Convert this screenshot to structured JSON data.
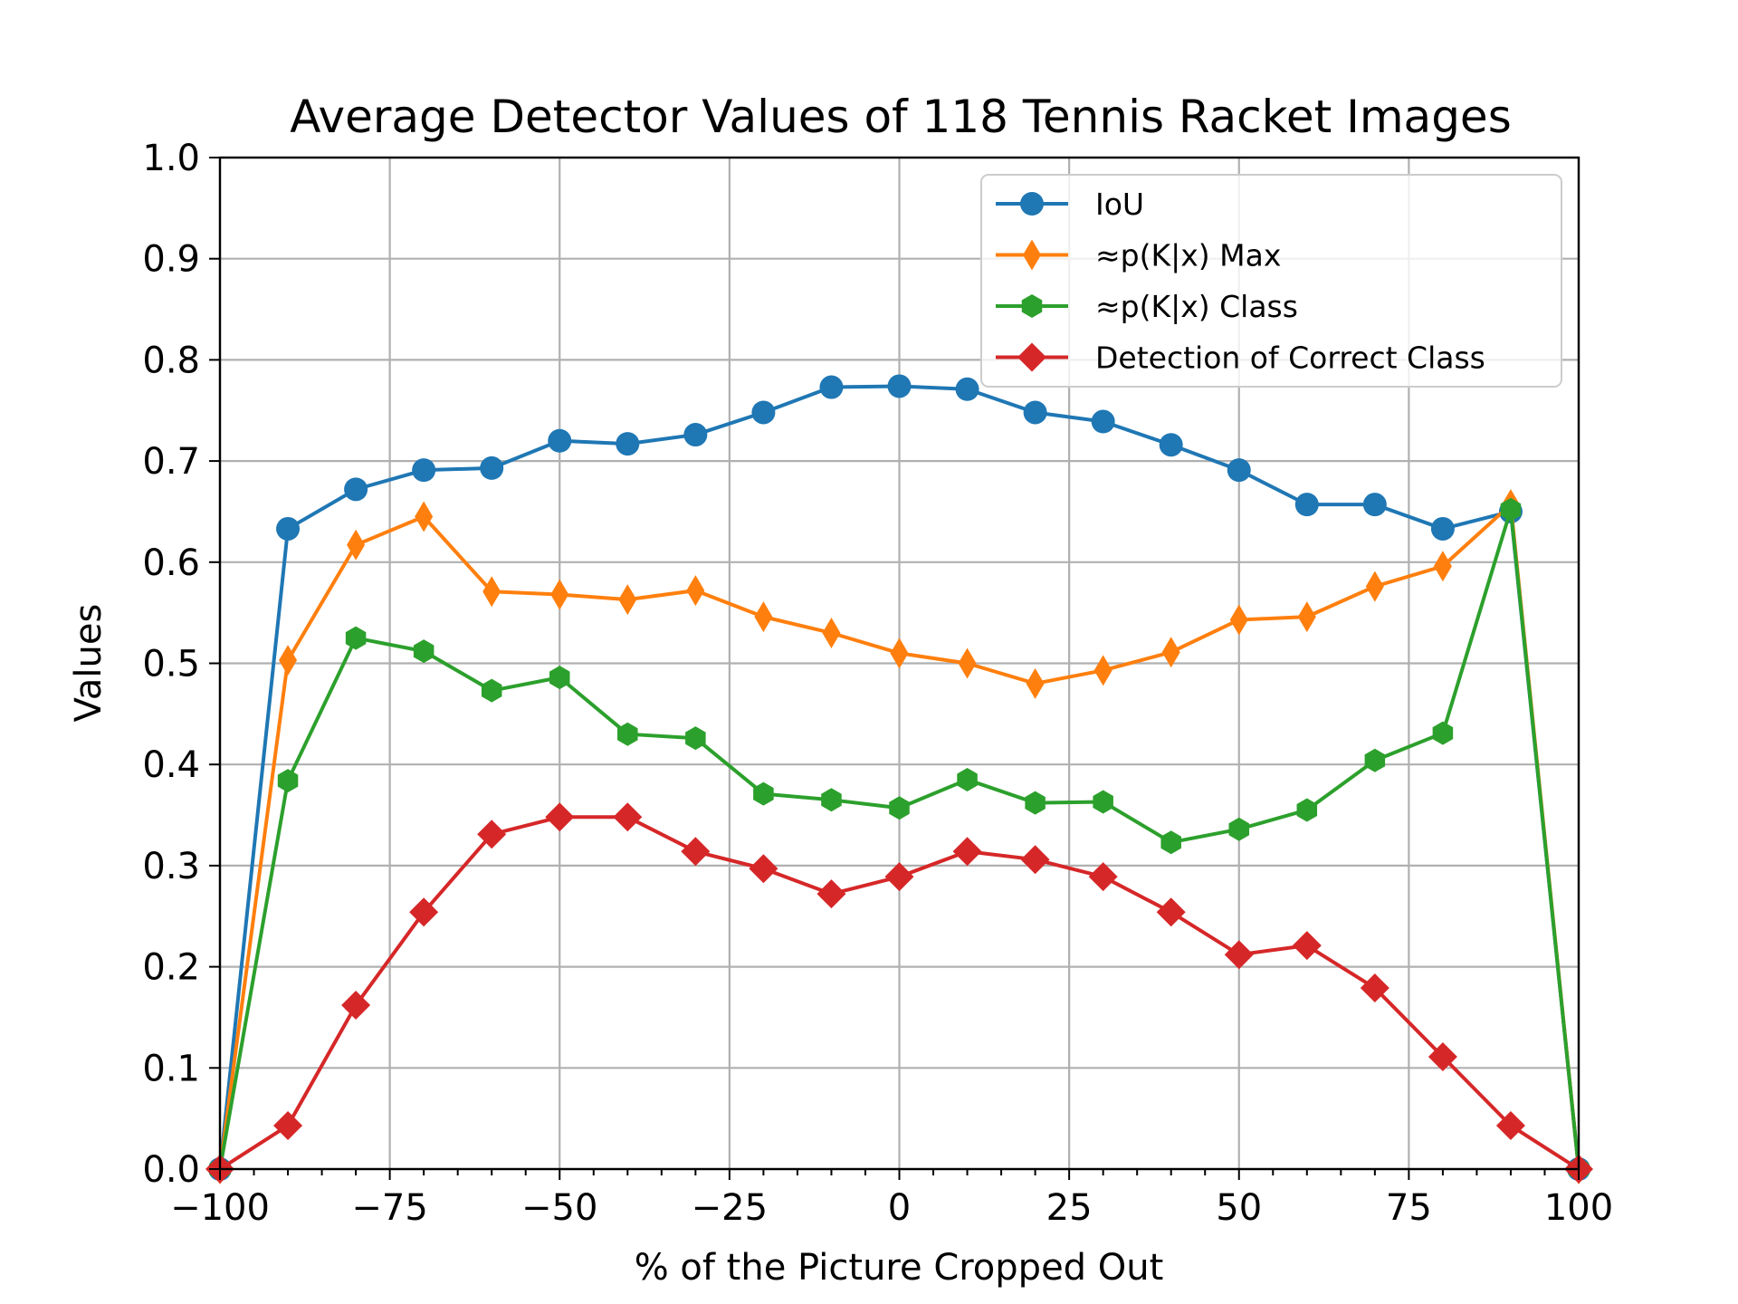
{
  "chart_data": {
    "type": "line",
    "title": "Average Detector Values of 118 Tennis Racket Images",
    "xlabel": "% of the Picture Cropped Out",
    "ylabel": "Values",
    "xlim": [
      -100,
      100
    ],
    "ylim": [
      0.0,
      1.0
    ],
    "grid": true,
    "legend_position": "top-right",
    "x": [
      -100,
      -90,
      -80,
      -70,
      -60,
      -50,
      -40,
      -30,
      -20,
      -10,
      0,
      10,
      20,
      30,
      40,
      50,
      60,
      70,
      80,
      90,
      100
    ],
    "x_ticks": [
      -100,
      -75,
      -50,
      -25,
      0,
      25,
      50,
      75,
      100
    ],
    "x_tick_labels": [
      "−100",
      "−75",
      "−50",
      "−25",
      "0",
      "25",
      "50",
      "75",
      "100"
    ],
    "y_ticks": [
      0.0,
      0.1,
      0.2,
      0.3,
      0.4,
      0.5,
      0.6,
      0.7,
      0.8,
      0.9,
      1.0
    ],
    "y_tick_labels": [
      "0.0",
      "0.1",
      "0.2",
      "0.3",
      "0.4",
      "0.5",
      "0.6",
      "0.7",
      "0.8",
      "0.9",
      "1.0"
    ],
    "series": [
      {
        "name": "IoU",
        "color": "#1f77b4",
        "marker": "circle",
        "values": [
          0.0,
          0.633,
          0.672,
          0.691,
          0.693,
          0.72,
          0.717,
          0.726,
          0.748,
          0.773,
          0.774,
          0.771,
          0.748,
          0.739,
          0.716,
          0.691,
          0.657,
          0.657,
          0.633,
          0.65,
          0.0
        ]
      },
      {
        "name": "≈p(K|x) Max",
        "color": "#ff7f0e",
        "marker": "thin_diamond",
        "values": [
          0.0,
          0.503,
          0.617,
          0.645,
          0.571,
          0.568,
          0.563,
          0.572,
          0.546,
          0.53,
          0.51,
          0.5,
          0.48,
          0.493,
          0.511,
          0.543,
          0.546,
          0.576,
          0.596,
          0.657,
          0.0
        ]
      },
      {
        "name": "≈p(K|x) Class",
        "color": "#2ca02c",
        "marker": "hexagon",
        "values": [
          0.0,
          0.384,
          0.525,
          0.512,
          0.473,
          0.486,
          0.43,
          0.426,
          0.371,
          0.365,
          0.357,
          0.385,
          0.362,
          0.363,
          0.323,
          0.336,
          0.355,
          0.404,
          0.431,
          0.652,
          0.0
        ]
      },
      {
        "name": "Detection of Correct Class",
        "color": "#d62728",
        "marker": "diamond",
        "values": [
          0.0,
          0.043,
          0.162,
          0.254,
          0.331,
          0.348,
          0.348,
          0.314,
          0.297,
          0.272,
          0.289,
          0.314,
          0.306,
          0.289,
          0.254,
          0.212,
          0.221,
          0.179,
          0.111,
          0.043,
          0.0
        ]
      }
    ]
  }
}
